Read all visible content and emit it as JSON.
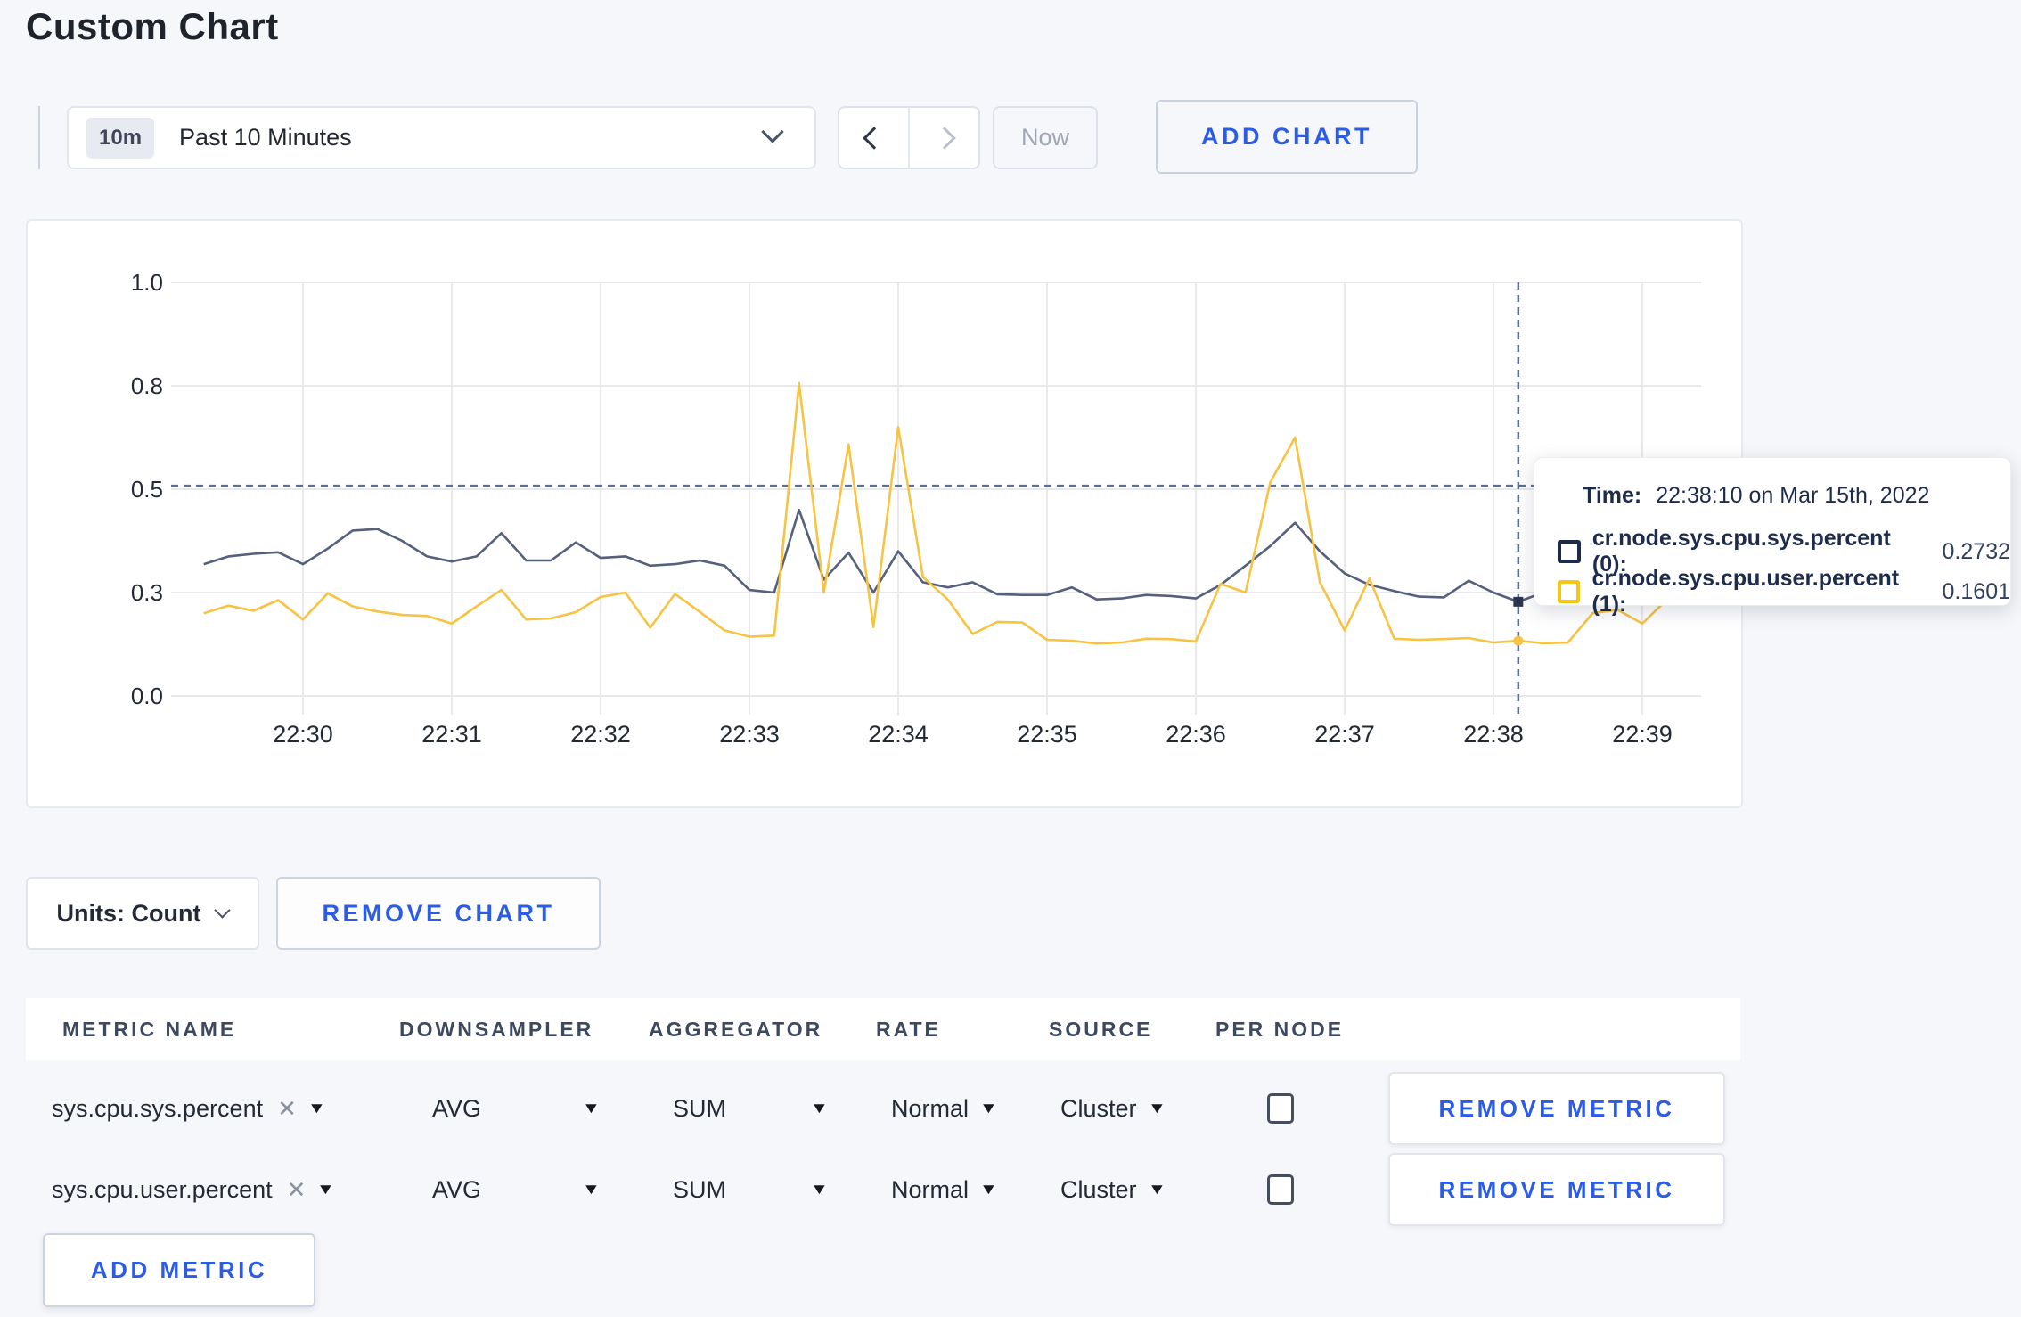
{
  "page": {
    "title": "Custom Chart",
    "accent_blue": "#2b5ce3",
    "background": "#f6f7fa"
  },
  "toolbar": {
    "time_range": {
      "badge": "10m",
      "label": "Past 10 Minutes"
    },
    "now_label": "Now",
    "add_chart_label": "ADD CHART"
  },
  "chart_data": {
    "type": "line",
    "title": "",
    "xlabel": "",
    "ylabel": "",
    "ylim": [
      0,
      1
    ],
    "grid": true,
    "legend_position": "none",
    "y_tick_values": [
      0.0,
      0.3,
      0.5,
      0.8,
      1.0
    ],
    "y_tick_labels": [
      "0.0",
      "0.3",
      "0.5",
      "0.8",
      "1.0"
    ],
    "x_tick_labels": [
      "22:30",
      "22:31",
      "22:32",
      "22:33",
      "22:34",
      "22:35",
      "22:36",
      "22:37",
      "22:38",
      "22:39"
    ],
    "interval_seconds": 10,
    "x": [
      "22:29:20",
      "22:29:30",
      "22:29:40",
      "22:29:50",
      "22:30:00",
      "22:30:10",
      "22:30:20",
      "22:30:30",
      "22:30:40",
      "22:30:50",
      "22:31:00",
      "22:31:10",
      "22:31:20",
      "22:31:30",
      "22:31:40",
      "22:31:50",
      "22:32:00",
      "22:32:10",
      "22:32:20",
      "22:32:30",
      "22:32:40",
      "22:32:50",
      "22:33:00",
      "22:33:10",
      "22:33:20",
      "22:33:30",
      "22:33:40",
      "22:33:50",
      "22:34:00",
      "22:34:10",
      "22:34:20",
      "22:34:30",
      "22:34:40",
      "22:34:50",
      "22:35:00",
      "22:35:10",
      "22:35:20",
      "22:35:30",
      "22:35:40",
      "22:35:50",
      "22:36:00",
      "22:36:10",
      "22:36:20",
      "22:36:30",
      "22:36:40",
      "22:36:50",
      "22:37:00",
      "22:37:10",
      "22:37:20",
      "22:37:30",
      "22:37:40",
      "22:37:50",
      "22:38:00",
      "22:38:10",
      "22:38:20",
      "22:38:30",
      "22:38:40",
      "22:38:50",
      "22:39:00",
      "22:39:10"
    ],
    "series": [
      {
        "name": "cr.node.sys.cpu.sys.percent",
        "color": "#55607d",
        "values": [
          0.355,
          0.37,
          0.375,
          0.378,
          0.355,
          0.385,
          0.42,
          0.423,
          0.4,
          0.37,
          0.36,
          0.37,
          0.415,
          0.362,
          0.362,
          0.397,
          0.367,
          0.37,
          0.352,
          0.355,
          0.362,
          0.352,
          0.305,
          0.3,
          0.46,
          0.325,
          0.377,
          0.3,
          0.38,
          0.32,
          0.31,
          0.32,
          0.295,
          0.293,
          0.293,
          0.31,
          0.28,
          0.283,
          0.293,
          0.29,
          0.283,
          0.315,
          0.352,
          0.39,
          0.435,
          0.38,
          0.337,
          0.315,
          0.303,
          0.288,
          0.286,
          0.323,
          0.3,
          0.2732,
          0.3,
          0.31,
          0.3,
          0.295,
          0.3,
          0.305
        ]
      },
      {
        "name": "cr.node.sys.cpu.user.percent",
        "color": "#f6c343",
        "values": [
          0.24,
          0.262,
          0.247,
          0.278,
          0.222,
          0.298,
          0.26,
          0.245,
          0.235,
          0.232,
          0.21,
          0.26,
          0.305,
          0.222,
          0.225,
          0.243,
          0.287,
          0.3,
          0.198,
          0.296,
          0.244,
          0.19,
          0.172,
          0.175,
          0.805,
          0.3,
          0.63,
          0.2,
          0.68,
          0.33,
          0.28,
          0.18,
          0.215,
          0.213,
          0.163,
          0.16,
          0.152,
          0.155,
          0.166,
          0.165,
          0.158,
          0.317,
          0.3,
          0.52,
          0.65,
          0.32,
          0.19,
          0.327,
          0.166,
          0.163,
          0.165,
          0.168,
          0.155,
          0.1601,
          0.153,
          0.155,
          0.24,
          0.25,
          0.21,
          0.28
        ]
      }
    ],
    "crosshair": {
      "time": "22:38:10",
      "y_value": 0.51,
      "color": "#5b7090"
    },
    "grid_color": "#e9e9eb"
  },
  "tooltip": {
    "time_label": "Time:",
    "time_value": "22:38:10 on Mar 15th, 2022",
    "rows": [
      {
        "label": "cr.node.sys.cpu.sys.percent (0):",
        "value": "0.2732",
        "swatch_color": "#1c2b4a"
      },
      {
        "label": "cr.node.sys.cpu.user.percent (1):",
        "value": "0.1601",
        "swatch_color": "#f5c518"
      }
    ]
  },
  "chart_footer": {
    "units_label": "Units: Count",
    "remove_chart_label": "REMOVE CHART"
  },
  "metrics_table": {
    "headers": [
      "METRIC NAME",
      "DOWNSAMPLER",
      "AGGREGATOR",
      "RATE",
      "SOURCE",
      "PER NODE"
    ],
    "rows": [
      {
        "metric": "sys.cpu.sys.percent",
        "downsampler": "AVG",
        "aggregator": "SUM",
        "rate": "Normal",
        "source": "Cluster",
        "per_node_checked": false,
        "remove_label": "REMOVE METRIC"
      },
      {
        "metric": "sys.cpu.user.percent",
        "downsampler": "AVG",
        "aggregator": "SUM",
        "rate": "Normal",
        "source": "Cluster",
        "per_node_checked": false,
        "remove_label": "REMOVE METRIC"
      }
    ],
    "add_metric_label": "ADD METRIC"
  }
}
